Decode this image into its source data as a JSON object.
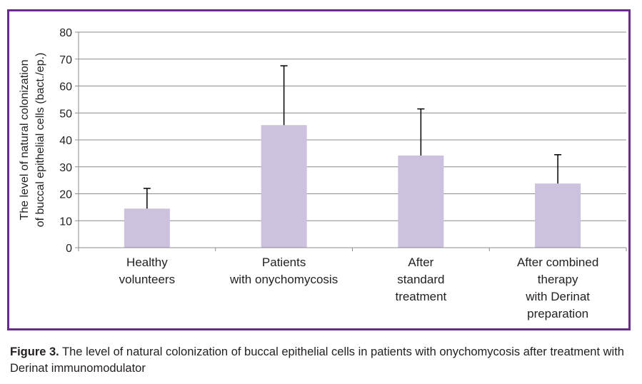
{
  "chart_data": {
    "type": "bar",
    "categories": [
      [
        "Healthy",
        "volunteers"
      ],
      [
        "Patients",
        "with onychomycosis"
      ],
      [
        "After",
        "standard",
        "treatment"
      ],
      [
        "After combined",
        "therapy",
        "with Derinat",
        "preparation"
      ]
    ],
    "values": [
      14.5,
      45.5,
      34.2,
      23.8
    ],
    "error_upper": [
      22,
      67.5,
      51.5,
      34.5
    ],
    "ylim": [
      0,
      80
    ],
    "yticks": [
      0,
      10,
      20,
      30,
      40,
      50,
      60,
      70,
      80
    ],
    "ylabel": [
      "The level of natural colonization",
      "of buccal epithelial cells (bact./ep.)"
    ],
    "grid": true,
    "bar_color": "#ccc1df",
    "frame_color": "#6a2c8c"
  },
  "caption": {
    "label": "Figure 3.",
    "text": " The level of natural colonization of buccal epithelial cells in patients with onychomycosis after treatment with Derinat immunomodulator"
  }
}
